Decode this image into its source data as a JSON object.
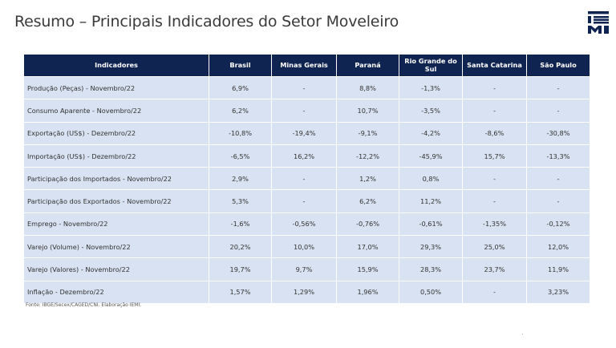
{
  "title": "Resumo – Principais Indicadores do Setor Moveleiro",
  "logo": {
    "icon": "iemi-logo-icon",
    "color": "#0f2451",
    "text": "IEMI"
  },
  "table": {
    "headers": [
      "Indicadores",
      "Brasil",
      "Minas Gerais",
      "Paraná",
      "Rio Grande do Sul",
      "Santa Catarina",
      "São Paulo"
    ],
    "rows": [
      [
        "Produção (Peças) - Novembro/22",
        "6,9%",
        "-",
        "8,8%",
        "-1,3%",
        "-",
        "-"
      ],
      [
        "Consumo Aparente - Novembro/22",
        "6,2%",
        "-",
        "10,7%",
        "-3,5%",
        "-",
        "-"
      ],
      [
        "Exportação (US$) - Dezembro/22",
        "-10,8%",
        "-19,4%",
        "-9,1%",
        "-4,2%",
        "-8,6%",
        "-30,8%"
      ],
      [
        "Importação (US$) - Dezembro/22",
        "-6,5%",
        "16,2%",
        "-12,2%",
        "-45,9%",
        "15,7%",
        "-13,3%"
      ],
      [
        "Participação dos Importados - Novembro/22",
        "2,9%",
        "-",
        "1,2%",
        "0,8%",
        "-",
        "-"
      ],
      [
        "Participação dos Exportados - Novembro/22",
        "5,3%",
        "-",
        "6,2%",
        "11,2%",
        "-",
        "-"
      ],
      [
        "Emprego - Novembro/22",
        "-1,6%",
        "-0,56%",
        "-0,76%",
        "-0,61%",
        "-1,35%",
        "-0,12%"
      ],
      [
        "Varejo (Volume) - Novembro/22",
        "20,2%",
        "10,0%",
        "17,0%",
        "29,3%",
        "25,0%",
        "12,0%"
      ],
      [
        "Varejo (Valores) - Novembro/22",
        "19,7%",
        "9,7%",
        "15,9%",
        "28,3%",
        "23,7%",
        "11,9%"
      ],
      [
        "Inflação - Dezembro/22",
        "1,57%",
        "1,29%",
        "1,96%",
        "0,50%",
        "-",
        "3,23%"
      ]
    ],
    "header_color": "#0f2451",
    "cell_color": "#d9e2f2"
  },
  "source": "Fonte: IBGE/Secex/CAGED/CNI. Elaboração IEMI."
}
